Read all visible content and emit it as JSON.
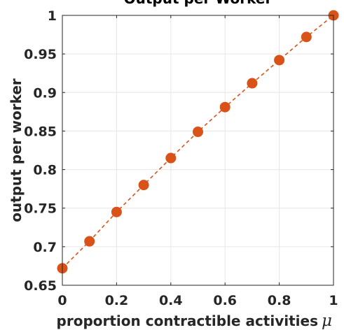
{
  "chart_data": {
    "type": "line",
    "title": "Output per Worker",
    "xlabel": "proportion contractible activities",
    "xlabel_symbol": "μ",
    "ylabel": "output per worker",
    "xlim": [
      0,
      1
    ],
    "ylim": [
      0.65,
      1
    ],
    "x_ticks": [
      "0",
      "0.2",
      "0.4",
      "0.6",
      "0.8",
      "1"
    ],
    "y_ticks": [
      "0.65",
      "0.7",
      "0.75",
      "0.8",
      "0.85",
      "0.9",
      "0.95",
      "1"
    ],
    "grid": true,
    "series": [
      {
        "name": "",
        "color": "#d95319",
        "line_style": "dashed",
        "marker": "circle",
        "x": [
          0,
          0.1,
          0.2,
          0.3,
          0.4,
          0.5,
          0.6,
          0.7,
          0.8,
          0.9,
          1.0
        ],
        "y": [
          0.672,
          0.707,
          0.745,
          0.78,
          0.815,
          0.849,
          0.881,
          0.912,
          0.942,
          0.972,
          1.0
        ]
      }
    ]
  }
}
